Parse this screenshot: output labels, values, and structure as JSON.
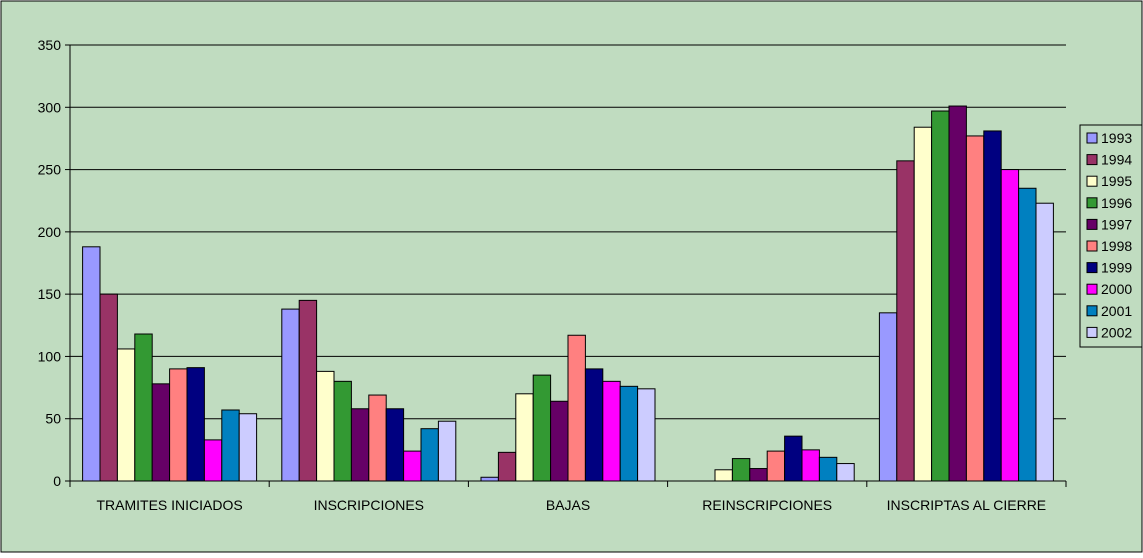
{
  "chart_data": {
    "type": "bar",
    "categories": [
      "TRAMITES INICIADOS",
      "INSCRIPCIONES",
      "BAJAS",
      "REINSCRIPCIONES",
      "INSCRIPTAS AL CIERRE"
    ],
    "series": [
      {
        "name": "1993",
        "color": "#9999ff",
        "values": [
          188,
          138,
          3,
          0,
          135
        ]
      },
      {
        "name": "1994",
        "color": "#993366",
        "values": [
          150,
          145,
          23,
          0,
          257
        ]
      },
      {
        "name": "1995",
        "color": "#ffffcc",
        "values": [
          106,
          88,
          70,
          9,
          284
        ]
      },
      {
        "name": "1996",
        "color": "#339933",
        "values": [
          118,
          80,
          85,
          18,
          297
        ]
      },
      {
        "name": "1997",
        "color": "#660066",
        "values": [
          78,
          58,
          64,
          10,
          301
        ]
      },
      {
        "name": "1998",
        "color": "#ff8080",
        "values": [
          90,
          69,
          117,
          24,
          277
        ]
      },
      {
        "name": "1999",
        "color": "#000080",
        "values": [
          91,
          58,
          90,
          36,
          281
        ]
      },
      {
        "name": "2000",
        "color": "#ff00ff",
        "values": [
          33,
          24,
          80,
          25,
          250
        ]
      },
      {
        "name": "2001",
        "color": "#0080c0",
        "values": [
          57,
          42,
          76,
          19,
          235
        ]
      },
      {
        "name": "2002",
        "color": "#ccccff",
        "values": [
          54,
          48,
          74,
          14,
          223
        ]
      }
    ],
    "y_ticks": [
      "0",
      "50",
      "100",
      "150",
      "200",
      "250",
      "300",
      "350"
    ],
    "ylim": [
      0,
      350
    ],
    "grid": true,
    "legend": "right",
    "plot_background": "#c0dcc0",
    "title": "",
    "xlabel": "",
    "ylabel": ""
  }
}
